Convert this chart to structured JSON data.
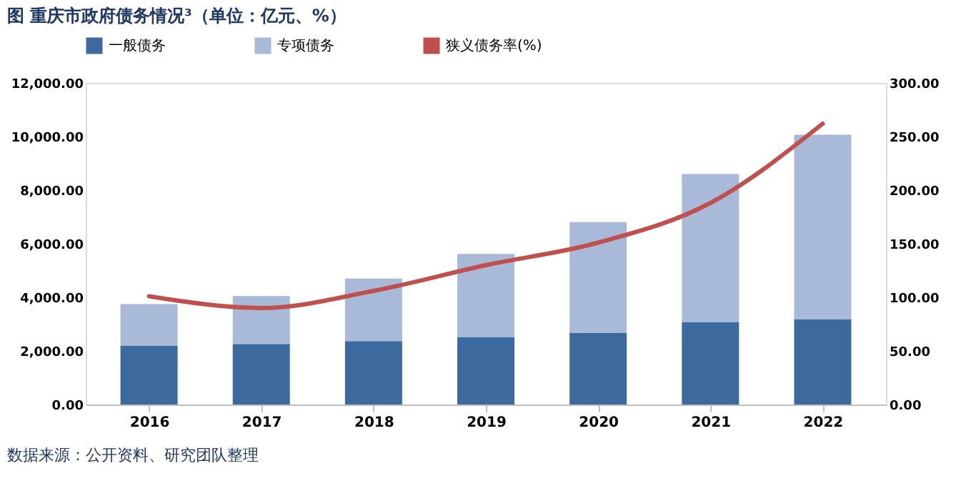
{
  "chart_data": {
    "type": "bar",
    "title": "图  重庆市政府债务情况³（单位：亿元、%）",
    "categories": [
      "2016",
      "2017",
      "2018",
      "2019",
      "2020",
      "2021",
      "2022"
    ],
    "stacked": true,
    "series": [
      {
        "name": "一般债务",
        "color": "#3d6a9e",
        "values": [
          2200,
          2260,
          2370,
          2520,
          2670,
          3080,
          3190
        ]
      },
      {
        "name": "专项债务",
        "color": "#a9b9d8",
        "values": [
          1550,
          1790,
          2330,
          3100,
          4140,
          5520,
          6880
        ]
      },
      {
        "name": "狭义债务率(%)",
        "type": "line",
        "axis": "y2",
        "color": "#c0504d",
        "values": [
          101,
          90,
          106,
          130,
          151,
          188,
          262
        ]
      }
    ],
    "ylim": [
      0,
      12000
    ],
    "yticks": [
      {
        "value": 0,
        "label": "0.00"
      },
      {
        "value": 2000,
        "label": "2,000.00"
      },
      {
        "value": 4000,
        "label": "4,000.00"
      },
      {
        "value": 6000,
        "label": "6,000.00"
      },
      {
        "value": 8000,
        "label": "8,000.00"
      },
      {
        "value": 10000,
        "label": "10,000.00"
      },
      {
        "value": 12000,
        "label": "12,000.00"
      }
    ],
    "y2lim": [
      0,
      300
    ],
    "y2ticks": [
      {
        "value": 0,
        "label": "0.00"
      },
      {
        "value": 50,
        "label": "50.00"
      },
      {
        "value": 100,
        "label": "100.00"
      },
      {
        "value": 150,
        "label": "150.00"
      },
      {
        "value": 200,
        "label": "200.00"
      },
      {
        "value": 250,
        "label": "250.00"
      },
      {
        "value": 300,
        "label": "300.00"
      }
    ],
    "grid": false,
    "legend": "top",
    "annotations": [
      "数据来源：公开资料、研究团队整理"
    ]
  }
}
